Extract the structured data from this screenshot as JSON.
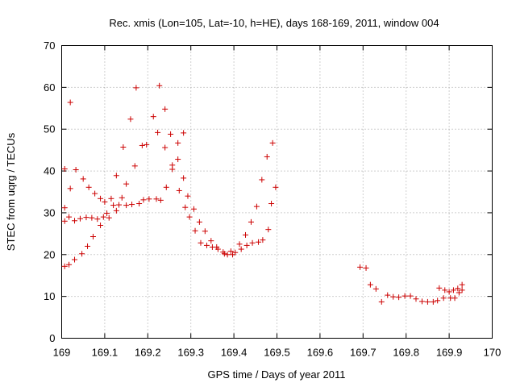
{
  "chart_data": {
    "type": "scatter",
    "title": "Rec. xmis (Lon=105, Lat=-10, h=HE), days 168-169, 2011, window 004",
    "xlabel": "GPS time / Days of year 2011",
    "ylabel": "STEC from uqrg / TECUs",
    "xlim": [
      169,
      170
    ],
    "ylim": [
      0,
      70
    ],
    "xticks": [
      "169",
      "169.1",
      "169.2",
      "169.3",
      "169.4",
      "169.5",
      "169.6",
      "169.7",
      "169.8",
      "169.9",
      "170"
    ],
    "yticks": [
      "0",
      "10",
      "20",
      "30",
      "40",
      "50",
      "60",
      "70"
    ],
    "grid": true,
    "marker": "plus",
    "color": "#cc0000",
    "points": [
      [
        169.007,
        40.5
      ],
      [
        169.007,
        31.2
      ],
      [
        169.007,
        28.0
      ],
      [
        169.007,
        17.2
      ],
      [
        169.017,
        17.6
      ],
      [
        169.017,
        29.0
      ],
      [
        169.02,
        35.8
      ],
      [
        169.02,
        56.4
      ],
      [
        169.03,
        28.1
      ],
      [
        169.03,
        18.8
      ],
      [
        169.033,
        40.3
      ],
      [
        169.043,
        28.6
      ],
      [
        169.047,
        20.2
      ],
      [
        169.05,
        38.1
      ],
      [
        169.057,
        28.9
      ],
      [
        169.06,
        22.0
      ],
      [
        169.063,
        36.1
      ],
      [
        169.07,
        28.8
      ],
      [
        169.073,
        24.3
      ],
      [
        169.077,
        34.6
      ],
      [
        169.083,
        28.5
      ],
      [
        169.09,
        27.0
      ],
      [
        169.09,
        33.4
      ],
      [
        169.097,
        29.0
      ],
      [
        169.1,
        32.6
      ],
      [
        169.105,
        29.9
      ],
      [
        169.11,
        28.8
      ],
      [
        169.115,
        33.4
      ],
      [
        169.12,
        31.8
      ],
      [
        169.127,
        30.5
      ],
      [
        169.127,
        38.9
      ],
      [
        169.133,
        31.9
      ],
      [
        169.14,
        33.6
      ],
      [
        169.143,
        45.7
      ],
      [
        169.15,
        31.8
      ],
      [
        169.15,
        36.9
      ],
      [
        169.16,
        52.4
      ],
      [
        169.163,
        32.0
      ],
      [
        169.17,
        41.2
      ],
      [
        169.173,
        59.9
      ],
      [
        169.18,
        32.2
      ],
      [
        169.187,
        46.1
      ],
      [
        169.19,
        33.1
      ],
      [
        169.197,
        46.3
      ],
      [
        169.203,
        33.3
      ],
      [
        169.213,
        53.0
      ],
      [
        169.22,
        33.3
      ],
      [
        169.223,
        49.2
      ],
      [
        169.227,
        60.4
      ],
      [
        169.23,
        33.0
      ],
      [
        169.24,
        54.8
      ],
      [
        169.24,
        45.6
      ],
      [
        169.243,
        36.1
      ],
      [
        169.253,
        48.8
      ],
      [
        169.257,
        40.4
      ],
      [
        169.257,
        41.4
      ],
      [
        169.27,
        46.7
      ],
      [
        169.27,
        42.8
      ],
      [
        169.273,
        35.3
      ],
      [
        169.283,
        49.1
      ],
      [
        169.283,
        38.3
      ],
      [
        169.287,
        31.3
      ],
      [
        169.293,
        34.0
      ],
      [
        169.297,
        29.0
      ],
      [
        169.307,
        30.9
      ],
      [
        169.31,
        25.7
      ],
      [
        169.32,
        27.8
      ],
      [
        169.323,
        22.8
      ],
      [
        169.333,
        25.6
      ],
      [
        169.337,
        22.2
      ],
      [
        169.347,
        23.3
      ],
      [
        169.35,
        21.8
      ],
      [
        169.36,
        21.8
      ],
      [
        169.363,
        21.3
      ],
      [
        169.375,
        20.6
      ],
      [
        169.378,
        20.2
      ],
      [
        169.385,
        20.0
      ],
      [
        169.393,
        20.8
      ],
      [
        169.397,
        20.0
      ],
      [
        169.403,
        20.5
      ],
      [
        169.413,
        22.5
      ],
      [
        169.417,
        21.3
      ],
      [
        169.427,
        24.7
      ],
      [
        169.43,
        22.2
      ],
      [
        169.44,
        27.8
      ],
      [
        169.443,
        22.8
      ],
      [
        169.453,
        31.5
      ],
      [
        169.457,
        23.0
      ],
      [
        169.465,
        37.9
      ],
      [
        169.467,
        23.5
      ],
      [
        169.477,
        43.4
      ],
      [
        169.48,
        26.0
      ],
      [
        169.487,
        32.2
      ],
      [
        169.49,
        46.7
      ],
      [
        169.497,
        36.1
      ],
      [
        169.693,
        17.0
      ],
      [
        169.707,
        16.8
      ],
      [
        169.717,
        12.8
      ],
      [
        169.73,
        11.8
      ],
      [
        169.743,
        8.7
      ],
      [
        169.757,
        10.3
      ],
      [
        169.77,
        9.9
      ],
      [
        169.783,
        9.8
      ],
      [
        169.797,
        10.1
      ],
      [
        169.81,
        10.1
      ],
      [
        169.823,
        9.4
      ],
      [
        169.837,
        8.8
      ],
      [
        169.85,
        8.7
      ],
      [
        169.863,
        8.7
      ],
      [
        169.873,
        9.0
      ],
      [
        169.877,
        12.0
      ],
      [
        169.887,
        9.6
      ],
      [
        169.89,
        11.5
      ],
      [
        169.9,
        11.1
      ],
      [
        169.903,
        9.6
      ],
      [
        169.91,
        11.5
      ],
      [
        169.913,
        9.6
      ],
      [
        169.92,
        11.9
      ],
      [
        169.923,
        10.9
      ],
      [
        169.93,
        11.5
      ],
      [
        169.93,
        12.8
      ]
    ]
  }
}
